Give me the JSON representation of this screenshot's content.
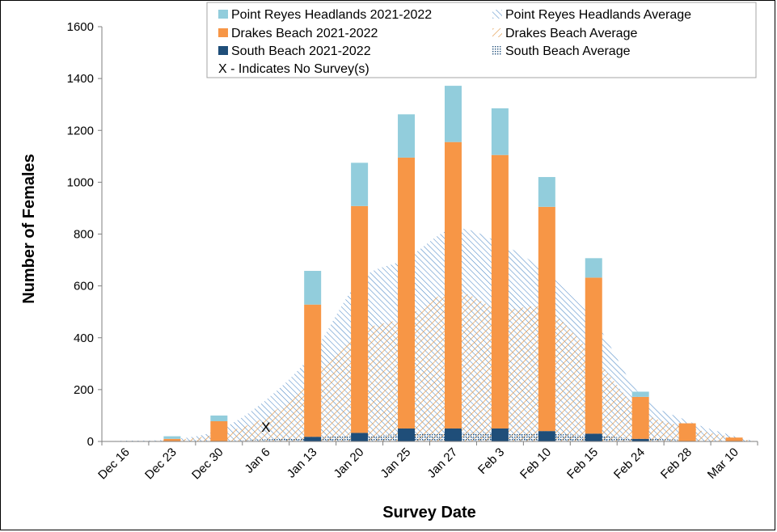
{
  "chart_data": {
    "type": "bar",
    "subtype": "stacked bar with average area overlays",
    "xlabel": "Survey Date",
    "ylabel": "Number of Females",
    "ylim": [
      0,
      1600
    ],
    "yticks": [
      0,
      200,
      400,
      600,
      800,
      1000,
      1200,
      1400,
      1600
    ],
    "categories": [
      "Dec 16",
      "Dec 23",
      "Dec 30",
      "Jan 6",
      "Jan 13",
      "Jan 20",
      "Jan 25",
      "Jan 27",
      "Feb 3",
      "Feb 10",
      "Feb 15",
      "Feb 24",
      "Feb 28",
      "Mar 10"
    ],
    "series": [
      {
        "name": "South Beach 2021-2022",
        "color": "#1f4e79",
        "values": [
          0,
          0,
          0,
          null,
          18,
          33,
          50,
          50,
          50,
          40,
          30,
          10,
          0,
          0
        ]
      },
      {
        "name": "Drakes Beach 2021-2022",
        "color": "#f79646",
        "values": [
          0,
          10,
          78,
          null,
          510,
          875,
          1045,
          1105,
          1055,
          865,
          602,
          162,
          70,
          15
        ]
      },
      {
        "name": "Point Reyes Headlands 2021-2022",
        "color": "#92cddc",
        "values": [
          0,
          10,
          22,
          null,
          130,
          167,
          167,
          217,
          180,
          115,
          75,
          20,
          0,
          0
        ]
      }
    ],
    "averages": [
      {
        "name": "Point Reyes Headlands Average",
        "color": "#4a86c5",
        "pattern": "diagonal-lines",
        "values": [
          3,
          8,
          45,
          160,
          340,
          620,
          705,
          820,
          765,
          650,
          470,
          180,
          80,
          20
        ]
      },
      {
        "name": "Drakes Beach Average",
        "color": "#e39b4e",
        "pattern": "diagonal-lines",
        "values": [
          1,
          5,
          30,
          95,
          240,
          420,
          480,
          580,
          510,
          510,
          330,
          120,
          55,
          15
        ]
      },
      {
        "name": "South Beach Average",
        "color": "#1f4e79",
        "pattern": "dots",
        "values": [
          0,
          1,
          3,
          8,
          15,
          22,
          28,
          34,
          33,
          30,
          22,
          12,
          6,
          2
        ]
      }
    ],
    "legend": {
      "position": "top-right",
      "entries": [
        "Point Reyes Headlands 2021-2022",
        "Point Reyes Headlands Average",
        "Drakes Beach 2021-2022",
        "Drakes Beach Average",
        "South Beach 2021-2022",
        "South Beach Average"
      ],
      "note": "X - Indicates No Survey(s)"
    },
    "annotations": [
      {
        "category": "Jan 6",
        "text": "X"
      }
    ]
  }
}
